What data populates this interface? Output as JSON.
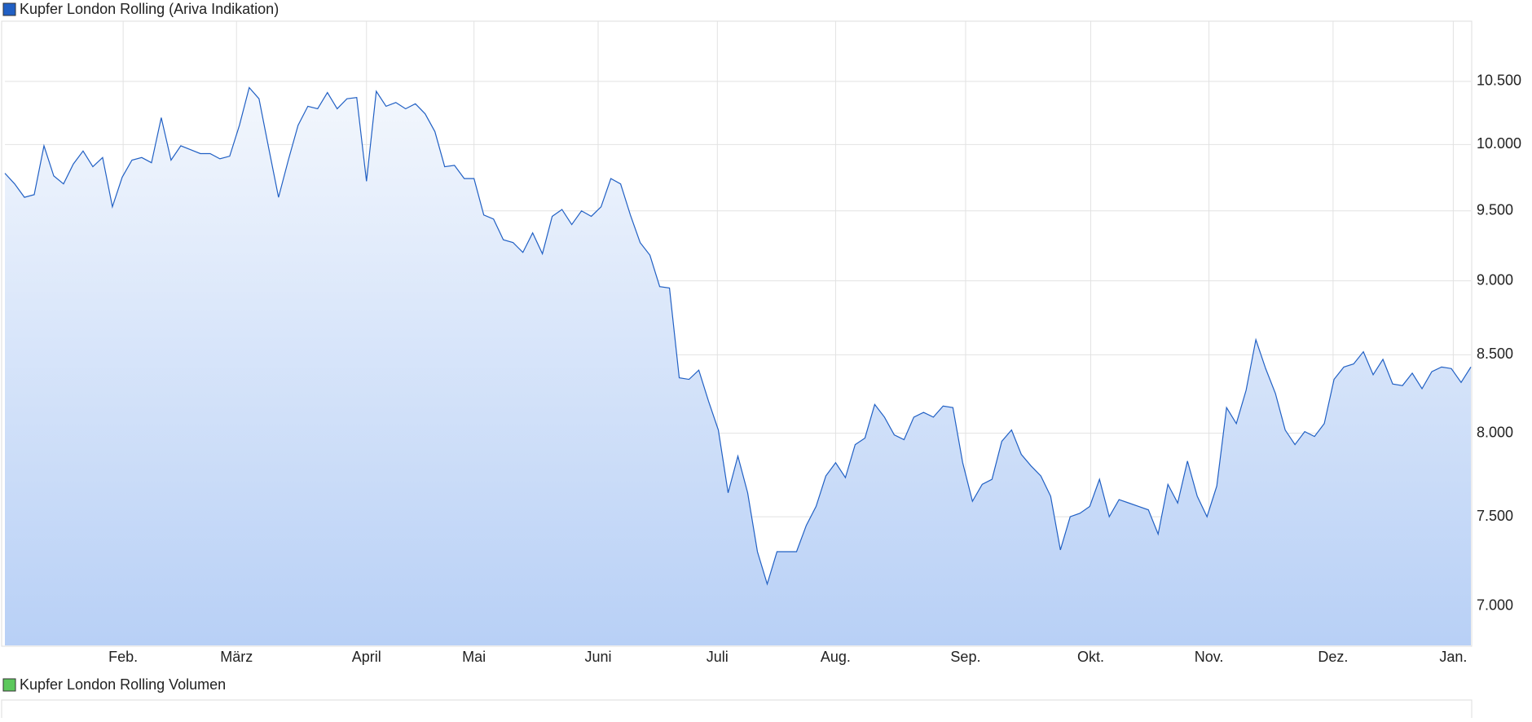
{
  "chart_data": [
    {
      "type": "line",
      "series": [
        {
          "name": "Kupfer London Rolling (Ariva Indikation)",
          "color": "#2160c4",
          "values": [
            9780,
            9700,
            9600,
            9620,
            9990,
            9760,
            9700,
            9850,
            9950,
            9830,
            9900,
            9530,
            9750,
            9880,
            9900,
            9860,
            10210,
            9880,
            9990,
            9960,
            9930,
            9930,
            9890,
            9910,
            10150,
            10450,
            10360,
            9970,
            9600,
            9880,
            10150,
            10300,
            10280,
            10410,
            10280,
            10360,
            10370,
            9720,
            10420,
            10300,
            10330,
            10280,
            10320,
            10240,
            10100,
            9830,
            9840,
            9740,
            9740,
            9470,
            9440,
            9290,
            9270,
            9200,
            9340,
            9190,
            9460,
            9510,
            9400,
            9500,
            9460,
            9530,
            9740,
            9700,
            9470,
            9270,
            9180,
            8960,
            8950,
            8350,
            8340,
            8400,
            8200,
            8020,
            7640,
            7860,
            7640,
            7300,
            7120,
            7300,
            7300,
            7300,
            7450,
            7560,
            7740,
            7820,
            7730,
            7930,
            7970,
            8180,
            8100,
            7990,
            7960,
            8100,
            8130,
            8100,
            8170,
            8160,
            7820,
            7590,
            7690,
            7720,
            7950,
            8020,
            7870,
            7800,
            7740,
            7620,
            7310,
            7500,
            7520,
            7560,
            7720,
            7500,
            7600,
            7580,
            7560,
            7540,
            7400,
            7690,
            7580,
            7830,
            7620,
            7500,
            7680,
            8160,
            8060,
            8270,
            8600,
            8410,
            8250,
            8020,
            7930,
            8010,
            7980,
            8060,
            8340,
            8420,
            8440,
            8520,
            8370,
            8470,
            8310,
            8300,
            8380,
            8280,
            8390,
            8420,
            8410,
            8320,
            8420
          ]
        }
      ],
      "xlim": [
        0,
        150
      ],
      "xticks": [
        {
          "value": 12.1,
          "label": "Feb."
        },
        {
          "value": 23.7,
          "label": "März"
        },
        {
          "value": 37,
          "label": "April"
        },
        {
          "value": 48,
          "label": "Mai"
        },
        {
          "value": 60.7,
          "label": "Juni"
        },
        {
          "value": 72.9,
          "label": "Juli"
        },
        {
          "value": 85,
          "label": "Aug."
        },
        {
          "value": 98.3,
          "label": "Sep."
        },
        {
          "value": 111.1,
          "label": "Okt."
        },
        {
          "value": 123.2,
          "label": "Nov."
        },
        {
          "value": 135.9,
          "label": "Dez."
        },
        {
          "value": 148.2,
          "label": "Jan."
        }
      ],
      "ylim": [
        6790,
        11000
      ],
      "yticks": [
        {
          "value": 7000,
          "label": "7.000"
        },
        {
          "value": 7500,
          "label": "7.500"
        },
        {
          "value": 8000,
          "label": "8.000"
        },
        {
          "value": 8500,
          "label": "8.500"
        },
        {
          "value": 9000,
          "label": "9.000"
        },
        {
          "value": 9500,
          "label": "9.500"
        },
        {
          "value": 10000,
          "label": "10.000"
        },
        {
          "value": 10500,
          "label": "10.500"
        }
      ],
      "log_scale": true,
      "grid": true
    },
    {
      "type": "bar",
      "series": [
        {
          "name": "Kupfer London Rolling Volumen",
          "color": "#5cc85c"
        }
      ]
    }
  ]
}
